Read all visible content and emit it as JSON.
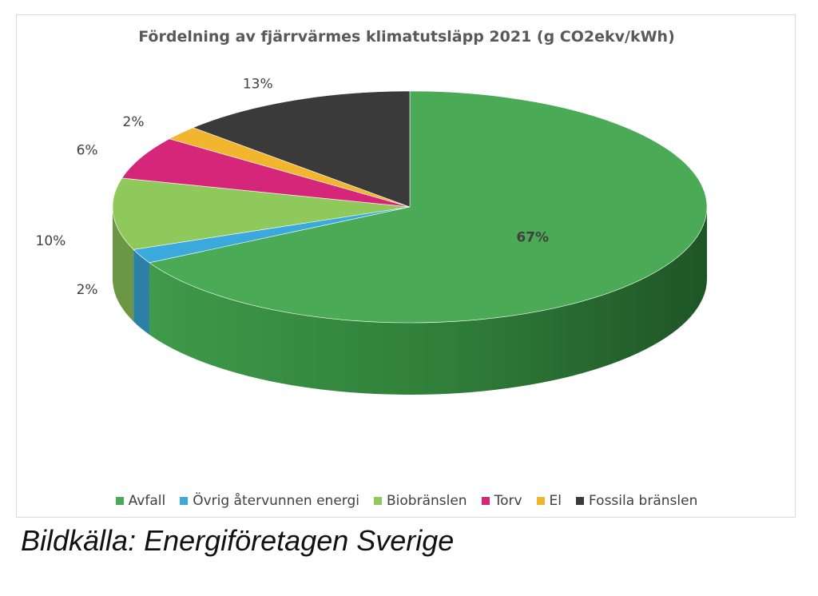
{
  "caption": "Bildkälla: Energiföretagen Sverige",
  "chart_data": {
    "type": "pie",
    "title": "Fördelning av fjärrvärmes klimatutsläpp 2021 (g CO2ekv/kWh)",
    "legend_position": "bottom",
    "style": "3d",
    "categories": [
      "Avfall",
      "Övrig återvunnen energi",
      "Biobränslen",
      "Torv",
      "El",
      "Fossila bränslen"
    ],
    "values": [
      67,
      2,
      10,
      6,
      2,
      13
    ],
    "labels": [
      "67%",
      "2%",
      "10%",
      "6%",
      "2%",
      "13%"
    ],
    "colors": [
      "#4aaa56",
      "#3ba9dc",
      "#8fc95c",
      "#d6267a",
      "#f1b62d",
      "#3a3a3a"
    ]
  }
}
